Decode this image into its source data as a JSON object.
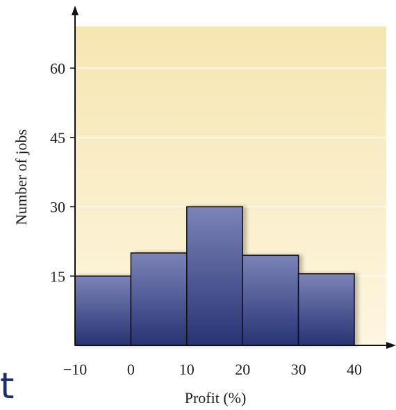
{
  "colors": {
    "plot_bg_top": "#f7e6b2",
    "plot_bg_bottom": "#fdf6e0",
    "bar_top": "#7b83b8",
    "bar_bottom": "#273373",
    "bar_stroke": "#111111",
    "axis": "#111111",
    "grid": "#ffffff",
    "page_fragment": "#1d2f6b"
  },
  "page_fragment_text": "t",
  "chart_data": {
    "type": "bar",
    "bin_edges": [
      -10,
      0,
      10,
      20,
      30,
      40
    ],
    "values": [
      15,
      20,
      30,
      19.5,
      15.5
    ],
    "xlabel": "Profit (%)",
    "ylabel": "Number of jobs",
    "x_tick_labels": [
      "−10",
      "0",
      "10",
      "20",
      "30",
      "40"
    ],
    "x_ticks": [
      -10,
      0,
      10,
      20,
      30,
      40
    ],
    "y_ticks": [
      15,
      30,
      45,
      60
    ],
    "y_tick_labels": [
      "15",
      "30",
      "45",
      "60"
    ],
    "xlim": [
      -10,
      46
    ],
    "ylim": [
      0,
      69
    ],
    "grid": true,
    "legend": "none"
  }
}
